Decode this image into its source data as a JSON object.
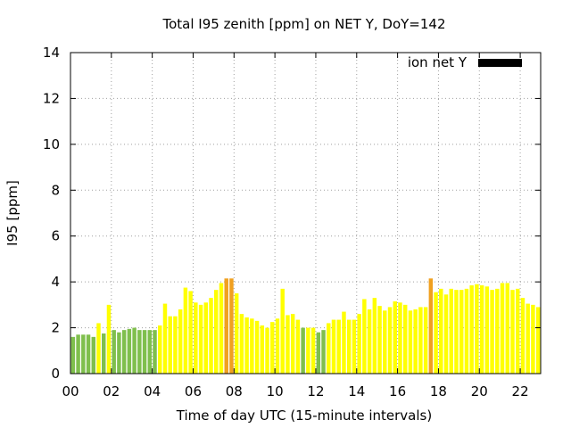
{
  "chart_data": {
    "type": "bar",
    "title": "Total I95 zenith [ppm] on NET Y, DoY=142",
    "xlabel": "Time of day UTC (15-minute intervals)",
    "ylabel": "I95 [ppm]",
    "xlim": [
      0,
      23
    ],
    "ylim": [
      0,
      14
    ],
    "x_unit": "hours UTC",
    "x_ticks": [
      "00",
      "02",
      "04",
      "06",
      "08",
      "10",
      "12",
      "14",
      "16",
      "18",
      "20",
      "22"
    ],
    "y_ticks": [
      "0",
      "2",
      "4",
      "6",
      "8",
      "10",
      "12",
      "14"
    ],
    "grid": true,
    "legend": {
      "position": "top-right",
      "label": "ion net Y",
      "swatch_color": "#000000"
    },
    "colors": {
      "green": "#7fbf4d",
      "yellow": "#ffff00",
      "orange": "#f0a020"
    },
    "series": [
      {
        "name": "ion net Y",
        "points": [
          {
            "x": 0.125,
            "y": 1.6,
            "level": "green"
          },
          {
            "x": 0.375,
            "y": 1.7,
            "level": "green"
          },
          {
            "x": 0.625,
            "y": 1.7,
            "level": "green"
          },
          {
            "x": 0.875,
            "y": 1.7,
            "level": "green"
          },
          {
            "x": 1.125,
            "y": 1.6,
            "level": "green"
          },
          {
            "x": 1.375,
            "y": 2.2,
            "level": "yellow"
          },
          {
            "x": 1.625,
            "y": 1.75,
            "level": "green"
          },
          {
            "x": 1.875,
            "y": 3.0,
            "level": "yellow"
          },
          {
            "x": 2.125,
            "y": 1.9,
            "level": "green"
          },
          {
            "x": 2.375,
            "y": 1.8,
            "level": "green"
          },
          {
            "x": 2.625,
            "y": 1.9,
            "level": "green"
          },
          {
            "x": 2.875,
            "y": 1.95,
            "level": "green"
          },
          {
            "x": 3.125,
            "y": 2.0,
            "level": "green"
          },
          {
            "x": 3.375,
            "y": 1.9,
            "level": "green"
          },
          {
            "x": 3.625,
            "y": 1.9,
            "level": "green"
          },
          {
            "x": 3.875,
            "y": 1.9,
            "level": "green"
          },
          {
            "x": 4.125,
            "y": 1.9,
            "level": "green"
          },
          {
            "x": 4.375,
            "y": 2.1,
            "level": "yellow"
          },
          {
            "x": 4.625,
            "y": 3.05,
            "level": "yellow"
          },
          {
            "x": 4.875,
            "y": 2.5,
            "level": "yellow"
          },
          {
            "x": 5.125,
            "y": 2.5,
            "level": "yellow"
          },
          {
            "x": 5.375,
            "y": 2.8,
            "level": "yellow"
          },
          {
            "x": 5.625,
            "y": 3.75,
            "level": "yellow"
          },
          {
            "x": 5.875,
            "y": 3.6,
            "level": "yellow"
          },
          {
            "x": 6.125,
            "y": 3.1,
            "level": "yellow"
          },
          {
            "x": 6.375,
            "y": 3.0,
            "level": "yellow"
          },
          {
            "x": 6.625,
            "y": 3.1,
            "level": "yellow"
          },
          {
            "x": 6.875,
            "y": 3.3,
            "level": "yellow"
          },
          {
            "x": 7.125,
            "y": 3.65,
            "level": "yellow"
          },
          {
            "x": 7.375,
            "y": 3.95,
            "level": "yellow"
          },
          {
            "x": 7.625,
            "y": 4.15,
            "level": "orange"
          },
          {
            "x": 7.875,
            "y": 4.15,
            "level": "orange"
          },
          {
            "x": 8.125,
            "y": 3.5,
            "level": "yellow"
          },
          {
            "x": 8.375,
            "y": 2.6,
            "level": "yellow"
          },
          {
            "x": 8.625,
            "y": 2.45,
            "level": "yellow"
          },
          {
            "x": 8.875,
            "y": 2.4,
            "level": "yellow"
          },
          {
            "x": 9.125,
            "y": 2.3,
            "level": "yellow"
          },
          {
            "x": 9.375,
            "y": 2.1,
            "level": "yellow"
          },
          {
            "x": 9.625,
            "y": 2.0,
            "level": "yellow"
          },
          {
            "x": 9.875,
            "y": 2.25,
            "level": "yellow"
          },
          {
            "x": 10.125,
            "y": 2.4,
            "level": "yellow"
          },
          {
            "x": 10.375,
            "y": 3.7,
            "level": "yellow"
          },
          {
            "x": 10.625,
            "y": 2.55,
            "level": "yellow"
          },
          {
            "x": 10.875,
            "y": 2.6,
            "level": "yellow"
          },
          {
            "x": 11.125,
            "y": 2.35,
            "level": "yellow"
          },
          {
            "x": 11.375,
            "y": 2.0,
            "level": "green"
          },
          {
            "x": 11.625,
            "y": 2.0,
            "level": "yellow"
          },
          {
            "x": 11.875,
            "y": 2.0,
            "level": "yellow"
          },
          {
            "x": 12.125,
            "y": 1.8,
            "level": "green"
          },
          {
            "x": 12.375,
            "y": 1.9,
            "level": "green"
          },
          {
            "x": 12.625,
            "y": 2.2,
            "level": "yellow"
          },
          {
            "x": 12.875,
            "y": 2.35,
            "level": "yellow"
          },
          {
            "x": 13.125,
            "y": 2.35,
            "level": "yellow"
          },
          {
            "x": 13.375,
            "y": 2.7,
            "level": "yellow"
          },
          {
            "x": 13.625,
            "y": 2.35,
            "level": "yellow"
          },
          {
            "x": 13.875,
            "y": 2.35,
            "level": "yellow"
          },
          {
            "x": 14.125,
            "y": 2.6,
            "level": "yellow"
          },
          {
            "x": 14.375,
            "y": 3.25,
            "level": "yellow"
          },
          {
            "x": 14.625,
            "y": 2.8,
            "level": "yellow"
          },
          {
            "x": 14.875,
            "y": 3.3,
            "level": "yellow"
          },
          {
            "x": 15.125,
            "y": 2.95,
            "level": "yellow"
          },
          {
            "x": 15.375,
            "y": 2.75,
            "level": "yellow"
          },
          {
            "x": 15.625,
            "y": 2.9,
            "level": "yellow"
          },
          {
            "x": 15.875,
            "y": 3.15,
            "level": "yellow"
          },
          {
            "x": 16.125,
            "y": 3.1,
            "level": "yellow"
          },
          {
            "x": 16.375,
            "y": 3.0,
            "level": "yellow"
          },
          {
            "x": 16.625,
            "y": 2.75,
            "level": "yellow"
          },
          {
            "x": 16.875,
            "y": 2.8,
            "level": "yellow"
          },
          {
            "x": 17.125,
            "y": 2.9,
            "level": "yellow"
          },
          {
            "x": 17.375,
            "y": 2.9,
            "level": "yellow"
          },
          {
            "x": 17.625,
            "y": 4.15,
            "level": "orange"
          },
          {
            "x": 17.875,
            "y": 3.55,
            "level": "yellow"
          },
          {
            "x": 18.125,
            "y": 3.7,
            "level": "yellow"
          },
          {
            "x": 18.375,
            "y": 3.45,
            "level": "yellow"
          },
          {
            "x": 18.625,
            "y": 3.7,
            "level": "yellow"
          },
          {
            "x": 18.875,
            "y": 3.65,
            "level": "yellow"
          },
          {
            "x": 19.125,
            "y": 3.65,
            "level": "yellow"
          },
          {
            "x": 19.375,
            "y": 3.7,
            "level": "yellow"
          },
          {
            "x": 19.625,
            "y": 3.85,
            "level": "yellow"
          },
          {
            "x": 19.875,
            "y": 3.9,
            "level": "yellow"
          },
          {
            "x": 20.125,
            "y": 3.85,
            "level": "yellow"
          },
          {
            "x": 20.375,
            "y": 3.8,
            "level": "yellow"
          },
          {
            "x": 20.625,
            "y": 3.65,
            "level": "yellow"
          },
          {
            "x": 20.875,
            "y": 3.7,
            "level": "yellow"
          },
          {
            "x": 21.125,
            "y": 3.95,
            "level": "yellow"
          },
          {
            "x": 21.375,
            "y": 3.95,
            "level": "yellow"
          },
          {
            "x": 21.625,
            "y": 3.65,
            "level": "yellow"
          },
          {
            "x": 21.875,
            "y": 3.7,
            "level": "yellow"
          },
          {
            "x": 22.125,
            "y": 3.3,
            "level": "yellow"
          },
          {
            "x": 22.375,
            "y": 3.05,
            "level": "yellow"
          },
          {
            "x": 22.625,
            "y": 3.0,
            "level": "yellow"
          },
          {
            "x": 22.875,
            "y": 2.9,
            "level": "yellow"
          }
        ]
      }
    ]
  }
}
